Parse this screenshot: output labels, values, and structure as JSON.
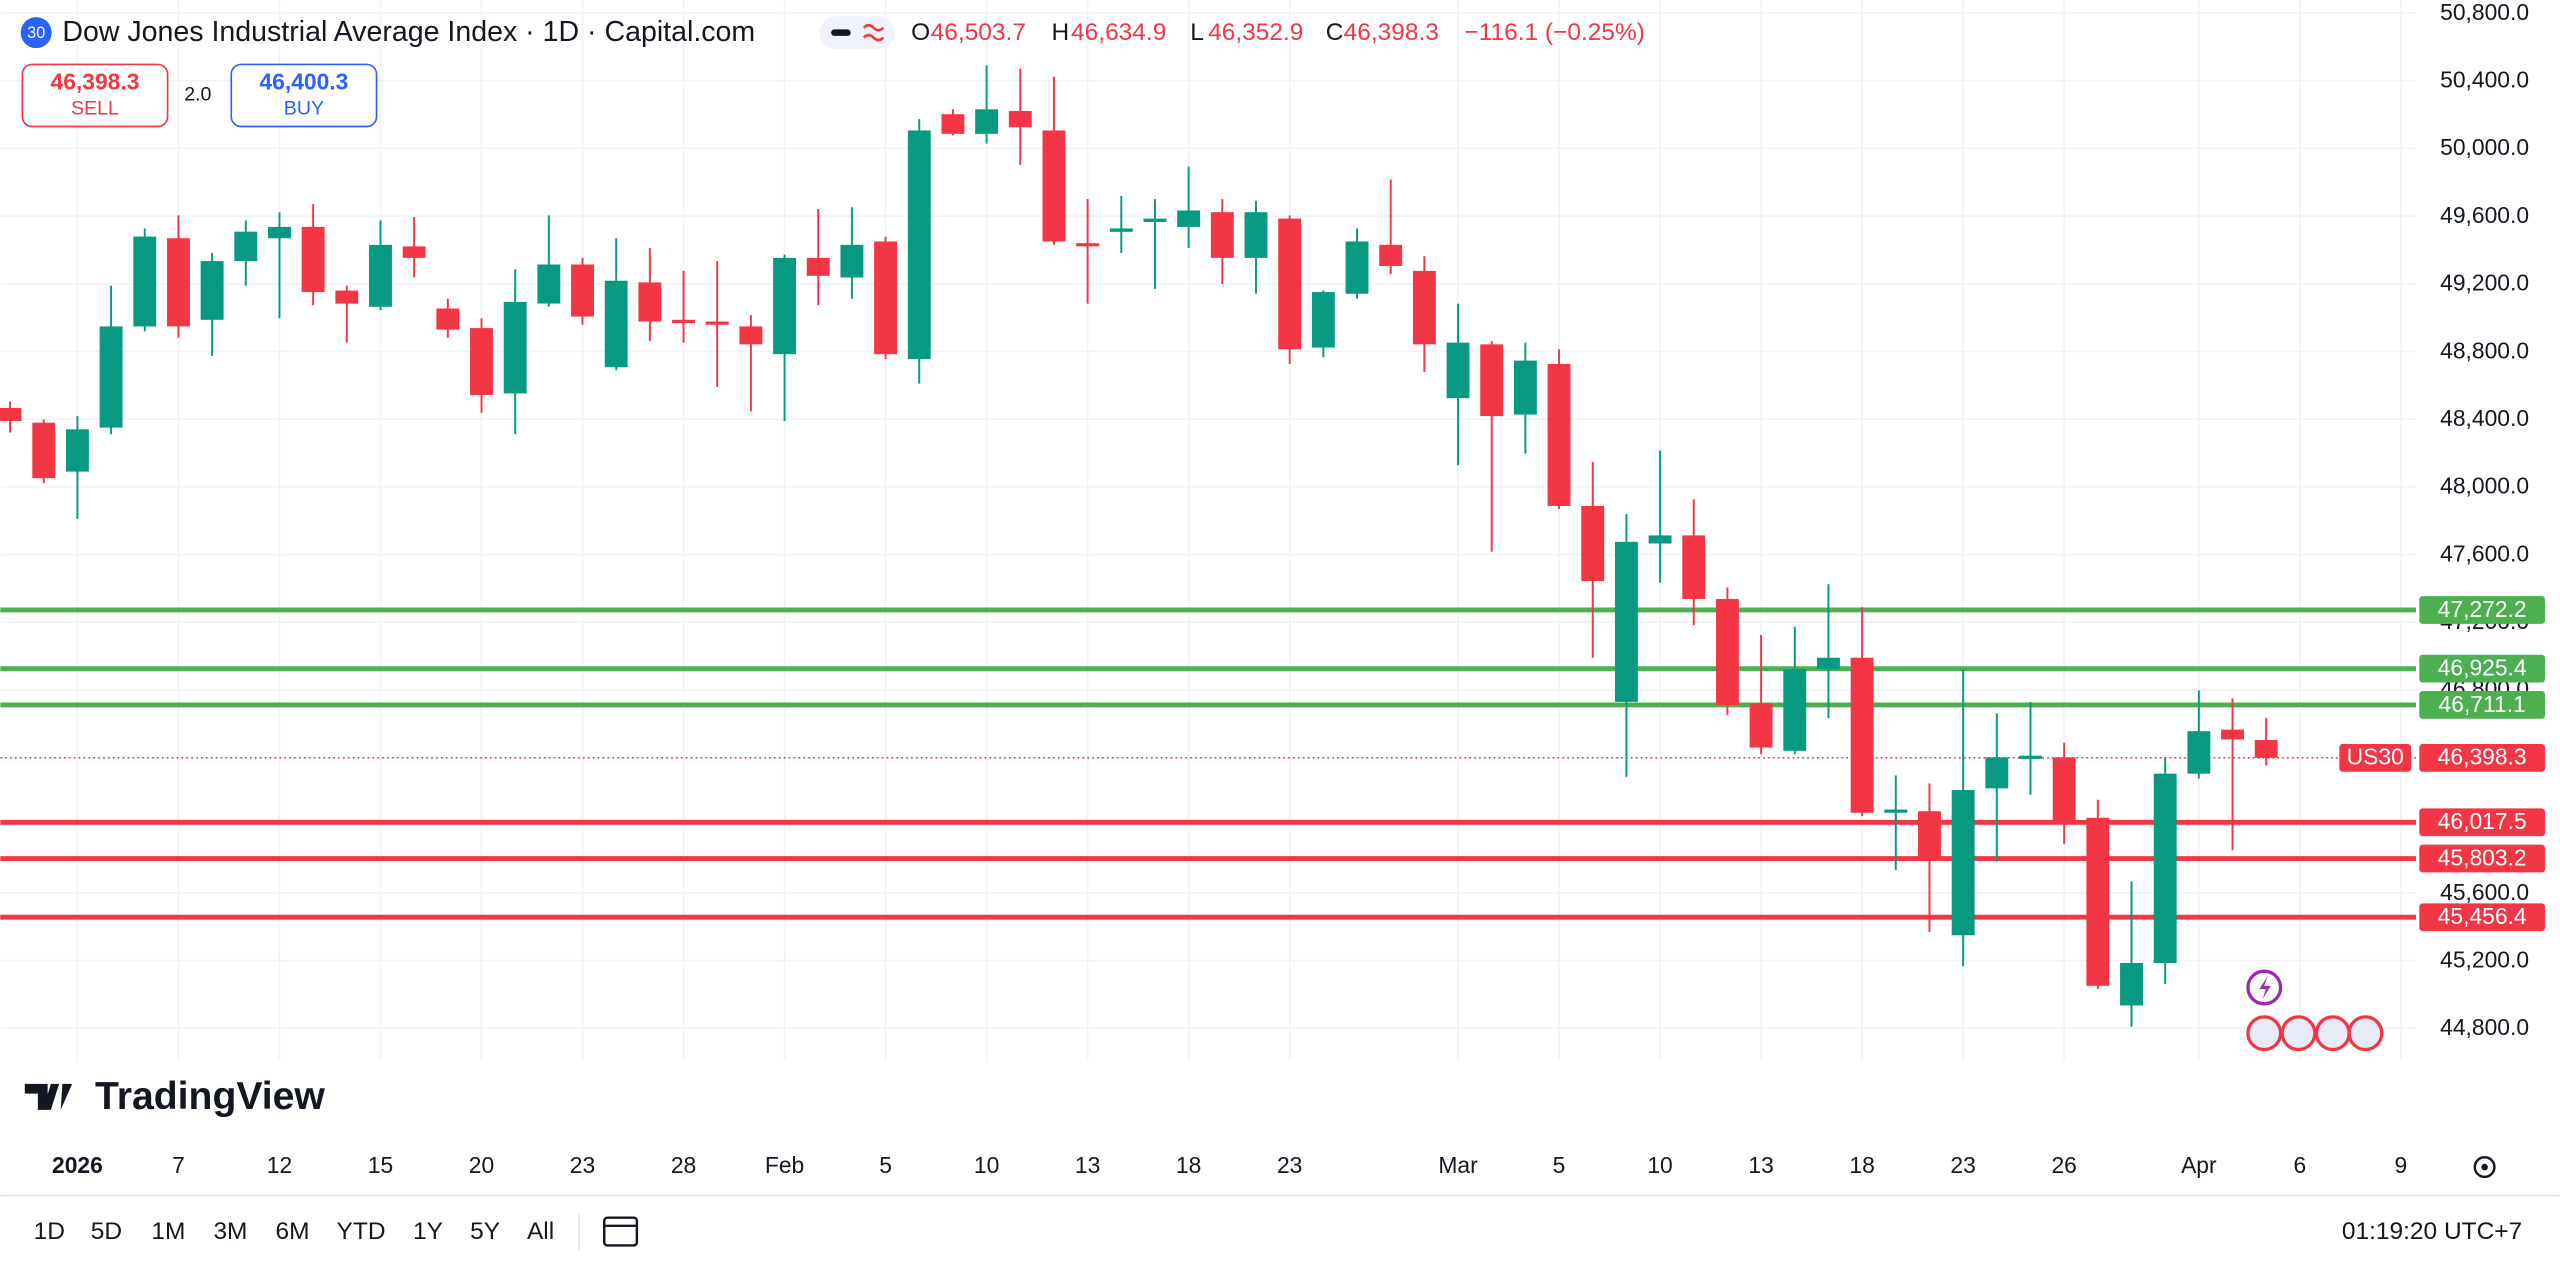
{
  "header": {
    "badge": "30",
    "title": "Dow Jones Industrial Average Index · 1D · Capital.com",
    "o_label": "O",
    "open": "46,503.7",
    "h_label": "H",
    "high": "46,634.9",
    "l_label": "L",
    "low": "46,352.9",
    "c_label": "C",
    "close": "46,398.3",
    "change": "−116.1 (−0.25%)",
    "sell_price": "46,398.3",
    "sell_label": "SELL",
    "spread": "2.0",
    "buy_price": "46,400.3",
    "buy_label": "BUY",
    "logo": "TradingView"
  },
  "toolbar": {
    "ranges": [
      "1D",
      "5D",
      "1M",
      "3M",
      "6M",
      "YTD",
      "1Y",
      "5Y",
      "All"
    ],
    "clock": "01:19:20 UTC+7"
  },
  "chart_data": {
    "type": "candlestick",
    "up_color": "#089981",
    "down_color": "#f23645",
    "x": [
      0,
      1,
      2,
      3,
      4,
      5,
      6,
      7,
      8,
      9,
      10,
      11,
      12,
      13,
      14,
      15,
      16,
      17,
      18,
      19,
      20,
      21,
      22,
      23,
      24,
      25,
      26,
      27,
      28,
      29,
      30,
      31,
      32,
      33,
      34,
      35,
      36,
      37,
      38,
      39,
      40,
      41,
      42,
      43,
      44,
      45,
      46,
      47,
      48,
      49,
      50,
      51,
      52,
      53,
      54,
      55,
      56,
      57,
      58,
      59,
      60,
      61,
      62,
      63,
      64,
      65,
      66,
      67
    ],
    "open": [
      48466,
      48379,
      48090,
      48350,
      48948,
      49469,
      48987,
      49334,
      49469,
      49536,
      49160,
      49064,
      49421,
      49054,
      48938,
      48552,
      49083,
      49314,
      48707,
      49208,
      48987,
      48977,
      48948,
      48784,
      49353,
      49237,
      49450,
      48755,
      50202,
      50086,
      50221,
      50106,
      49440,
      49507,
      49565,
      49536,
      49623,
      49353,
      49585,
      48823,
      49141,
      49430,
      49276,
      48524,
      48842,
      48427,
      48726,
      47887,
      46729,
      47665,
      47713,
      47337,
      46720,
      46440,
      46922,
      46990,
      46074,
      46083,
      45350,
      46218,
      46392,
      46401,
      46044,
      44935,
      45186,
      46305,
      46565,
      46503.7
    ],
    "high": [
      48504,
      48398,
      48418,
      49189,
      49527,
      49604,
      49382,
      49575,
      49623,
      49671,
      49189,
      49575,
      49594,
      49112,
      48996,
      49286,
      49604,
      49353,
      49469,
      49411,
      49276,
      49334,
      49015,
      49372,
      49642,
      49652,
      49478,
      50173,
      50231,
      50491,
      50472,
      50424,
      49700,
      49720,
      49700,
      49893,
      49700,
      49691,
      49604,
      49160,
      49527,
      49816,
      49363,
      49083,
      48861,
      48852,
      48813,
      48147,
      47839,
      48215,
      47926,
      47405,
      47125,
      47173,
      47424,
      47289,
      46295,
      46247,
      46922,
      46662,
      46729,
      46488,
      46151,
      45668,
      46401,
      46797,
      46749,
      46634.9
    ],
    "low": [
      48321,
      48022,
      47810,
      48311,
      48919,
      48881,
      48774,
      49189,
      48996,
      49073,
      48852,
      49044,
      49237,
      48881,
      48437,
      48311,
      49064,
      48958,
      48688,
      48861,
      48852,
      48591,
      48446,
      48389,
      49073,
      49112,
      48755,
      48610,
      50077,
      50028,
      49903,
      49430,
      49083,
      49382,
      49170,
      49411,
      49199,
      49141,
      48726,
      48765,
      49112,
      49257,
      48678,
      48128,
      47617,
      48196,
      47868,
      46990,
      46286,
      47433,
      47183,
      46652,
      46421,
      46421,
      46633,
      46054,
      45736,
      45369,
      45167,
      45784,
      46180,
      45890,
      45032,
      44810,
      45061,
      46276,
      45852,
      46352.9
    ],
    "close": [
      48389,
      48051,
      48340,
      48948,
      49479,
      48948,
      49334,
      49508,
      49536,
      49151,
      49083,
      49430,
      49353,
      48929,
      48543,
      49093,
      49314,
      49006,
      49218,
      48977,
      48967,
      48958,
      48842,
      49353,
      49247,
      49430,
      48784,
      50106,
      50086,
      50231,
      50125,
      49450,
      49421,
      49527,
      49585,
      49633,
      49353,
      49623,
      48813,
      49151,
      49450,
      49305,
      48842,
      48852,
      48418,
      48746,
      47887,
      47443,
      47675,
      47713,
      47337,
      46710,
      46459,
      46922,
      46990,
      46074,
      46093,
      45794,
      46208,
      46401,
      46411,
      46025,
      45051,
      45186,
      46305,
      46556,
      46507,
      46398.3
    ],
    "xlim": [
      -0.29,
      71.45
    ],
    "ylim": [
      44607,
      50877
    ],
    "xticks": [
      {
        "value": 2,
        "label": "2026"
      },
      {
        "value": 5,
        "label": "7"
      },
      {
        "value": 8,
        "label": "12"
      },
      {
        "value": 11,
        "label": "15"
      },
      {
        "value": 14,
        "label": "20"
      },
      {
        "value": 17,
        "label": "23"
      },
      {
        "value": 20,
        "label": "28"
      },
      {
        "value": 23,
        "label": "Feb"
      },
      {
        "value": 26,
        "label": "5"
      },
      {
        "value": 29,
        "label": "10"
      },
      {
        "value": 32,
        "label": "13"
      },
      {
        "value": 35,
        "label": "18"
      },
      {
        "value": 38,
        "label": "23"
      },
      {
        "value": 43,
        "label": "Mar"
      },
      {
        "value": 46,
        "label": "5"
      },
      {
        "value": 49,
        "label": "10"
      },
      {
        "value": 52,
        "label": "13"
      },
      {
        "value": 55,
        "label": "18"
      },
      {
        "value": 58,
        "label": "23"
      },
      {
        "value": 61,
        "label": "26"
      },
      {
        "value": 65,
        "label": "Apr"
      },
      {
        "value": 68,
        "label": "6"
      },
      {
        "value": 71,
        "label": "9"
      }
    ],
    "yticks": [
      {
        "value": 44800,
        "label": "44,800.0"
      },
      {
        "value": 45200,
        "label": "45,200.0"
      },
      {
        "value": 45600,
        "label": "45,600.0"
      },
      {
        "value": 46000,
        "label": "46,000.0"
      },
      {
        "value": 46400,
        "label": "46,400.0"
      },
      {
        "value": 46800,
        "label": "46,800.0"
      },
      {
        "value": 47200,
        "label": "47,200.0"
      },
      {
        "value": 47600,
        "label": "47,600.0"
      },
      {
        "value": 48000,
        "label": "48,000.0"
      },
      {
        "value": 48400,
        "label": "48,400.0"
      },
      {
        "value": 48800,
        "label": "48,800.0"
      },
      {
        "value": 49200,
        "label": "49,200.0"
      },
      {
        "value": 49600,
        "label": "49,600.0"
      },
      {
        "value": 50000,
        "label": "50,000.0"
      },
      {
        "value": 50400,
        "label": "50,400.0"
      },
      {
        "value": 50800,
        "label": "50,800.0"
      }
    ],
    "grid": true,
    "levels": [
      {
        "value": 47272.2,
        "label": "47,272.2",
        "color": "#4caf50"
      },
      {
        "value": 46925.4,
        "label": "46,925.4",
        "color": "#4caf50"
      },
      {
        "value": 46711.1,
        "label": "46,711.1",
        "color": "#4caf50"
      },
      {
        "value": 46017.5,
        "label": "46,017.5",
        "color": "#f23645"
      },
      {
        "value": 45803.2,
        "label": "45,803.2",
        "color": "#f23645"
      },
      {
        "value": 45456.4,
        "label": "45,456.4",
        "color": "#f23645"
      }
    ],
    "last_price": {
      "value": 46398.3,
      "label": "46,398.3",
      "symbol": "US30",
      "color": "#f23645"
    }
  }
}
